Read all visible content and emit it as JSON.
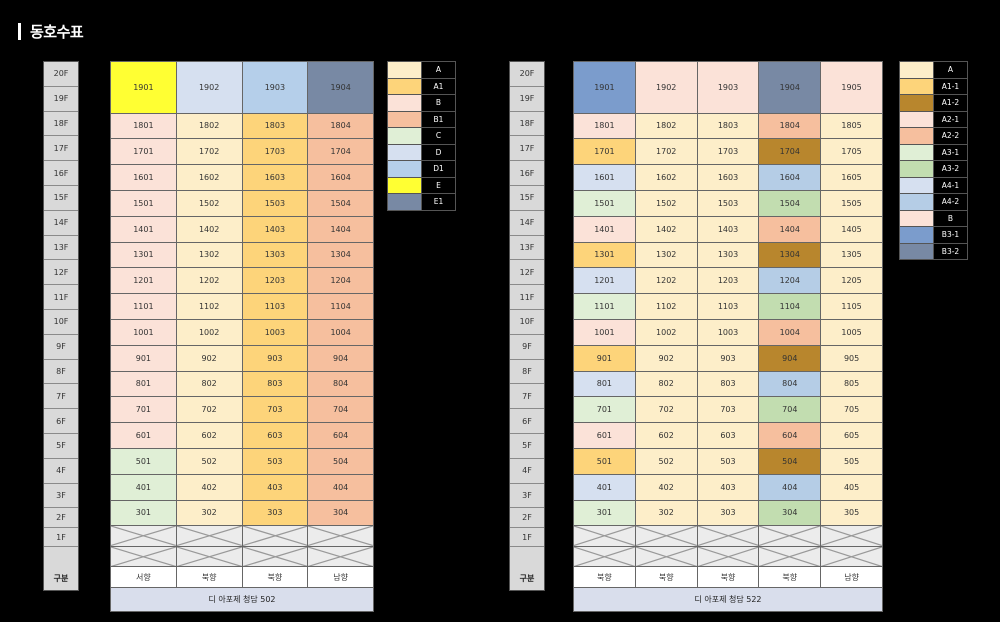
{
  "title": "동호수표",
  "colors": {
    "A": "#fdeec9",
    "A1": "#fdd47a",
    "B": "#fbe2d8",
    "B1": "#f6bf9e",
    "C": "#e0efd6",
    "D": "#d6e0f0",
    "D1": "#b5cfea",
    "E": "#ffff33",
    "E1": "#7889a4",
    "A1-1": "#fdd47a",
    "A1-2": "#b8862d",
    "A2-1": "#fbe2d8",
    "A2-2": "#f6bf9e",
    "A3-1": "#e0efd6",
    "A3-2": "#c2ddb0",
    "A4-1": "#d6e0f0",
    "A4-2": "#b5cde6",
    "B3-1": "#7b9ccc",
    "B3-2": "#7889a4"
  },
  "floors": {
    "upper": [
      "20F",
      "19F",
      "18F",
      "17F",
      "16F",
      "15F",
      "14F",
      "13F",
      "12F",
      "11F",
      "10F",
      "9F",
      "8F",
      "7F",
      "6F",
      "5F",
      "4F",
      "3F",
      "2F",
      "1F"
    ],
    "label": "구분"
  },
  "building502": {
    "top_units": [
      "1901",
      "1902",
      "1903",
      "1904"
    ],
    "top_types": [
      "E",
      "D",
      "D1",
      "E1"
    ],
    "floor_numbers": [
      "18",
      "17",
      "16",
      "15",
      "14",
      "13",
      "12",
      "11",
      "10",
      "9",
      "8",
      "7",
      "6",
      "5",
      "4",
      "3"
    ],
    "line_suffixes": [
      "01",
      "02",
      "03",
      "04"
    ],
    "line_types_by_floor": {
      "18": [
        "B",
        "A",
        "A1",
        "B1"
      ],
      "17": [
        "B",
        "A",
        "A1",
        "B1"
      ],
      "16": [
        "B",
        "A",
        "A1",
        "B1"
      ],
      "15": [
        "B",
        "A",
        "A1",
        "B1"
      ],
      "14": [
        "B",
        "A",
        "A1",
        "B1"
      ],
      "13": [
        "B",
        "A",
        "A1",
        "B1"
      ],
      "12": [
        "B",
        "A",
        "A1",
        "B1"
      ],
      "11": [
        "B",
        "A",
        "A1",
        "B1"
      ],
      "10": [
        "B",
        "A",
        "A1",
        "B1"
      ],
      "9": [
        "B",
        "A",
        "A1",
        "B1"
      ],
      "8": [
        "B",
        "A",
        "A1",
        "B1"
      ],
      "7": [
        "B",
        "A",
        "A1",
        "B1"
      ],
      "6": [
        "B",
        "A",
        "A1",
        "B1"
      ],
      "5": [
        "C",
        "A",
        "A1",
        "B1"
      ],
      "4": [
        "C",
        "A",
        "A1",
        "B1"
      ],
      "3": [
        "C",
        "A",
        "A1",
        "B1"
      ]
    },
    "directions": [
      "서향",
      "북향",
      "북향",
      "남향"
    ],
    "name": "디 아포제 청담 502"
  },
  "building522": {
    "top_units": [
      "1901",
      "1902",
      "1903",
      "1904",
      "1905"
    ],
    "top_types": [
      "B3-1",
      "B",
      "B",
      "B3-2",
      "B"
    ],
    "floor_numbers": [
      "18",
      "17",
      "16",
      "15",
      "14",
      "13",
      "12",
      "11",
      "10",
      "9",
      "8",
      "7",
      "6",
      "5",
      "4",
      "3"
    ],
    "line_suffixes": [
      "01",
      "02",
      "03",
      "04",
      "05"
    ],
    "line_types_by_floor": {
      "18": [
        "A2-1",
        "A",
        "A",
        "A2-2",
        "A"
      ],
      "17": [
        "A1-1",
        "A",
        "A",
        "A1-2",
        "A"
      ],
      "16": [
        "A4-1",
        "A",
        "A",
        "A4-2",
        "A"
      ],
      "15": [
        "A3-1",
        "A",
        "A",
        "A3-2",
        "A"
      ],
      "14": [
        "A2-1",
        "A",
        "A",
        "A2-2",
        "A"
      ],
      "13": [
        "A1-1",
        "A",
        "A",
        "A1-2",
        "A"
      ],
      "12": [
        "A4-1",
        "A",
        "A",
        "A4-2",
        "A"
      ],
      "11": [
        "A3-1",
        "A",
        "A",
        "A3-2",
        "A"
      ],
      "10": [
        "A2-1",
        "A",
        "A",
        "A2-2",
        "A"
      ],
      "9": [
        "A1-1",
        "A",
        "A",
        "A1-2",
        "A"
      ],
      "8": [
        "A4-1",
        "A",
        "A",
        "A4-2",
        "A"
      ],
      "7": [
        "A3-1",
        "A",
        "A",
        "A3-2",
        "A"
      ],
      "6": [
        "A2-1",
        "A",
        "A",
        "A2-2",
        "A"
      ],
      "5": [
        "A1-1",
        "A",
        "A",
        "A1-2",
        "A"
      ],
      "4": [
        "A4-1",
        "A",
        "A",
        "A4-2",
        "A"
      ],
      "3": [
        "A3-1",
        "A",
        "A",
        "A3-2",
        "A"
      ]
    },
    "directions": [
      "북향",
      "북향",
      "북향",
      "북향",
      "남향"
    ],
    "name": "디 아포제 청담 522"
  },
  "legend502": [
    "A",
    "A1",
    "B",
    "B1",
    "C",
    "D",
    "D1",
    "E",
    "E1"
  ],
  "legend522": [
    "A",
    "A1-1",
    "A1-2",
    "A2-1",
    "A2-2",
    "A3-1",
    "A3-2",
    "A4-1",
    "A4-2",
    "B",
    "B3-1",
    "B3-2"
  ]
}
